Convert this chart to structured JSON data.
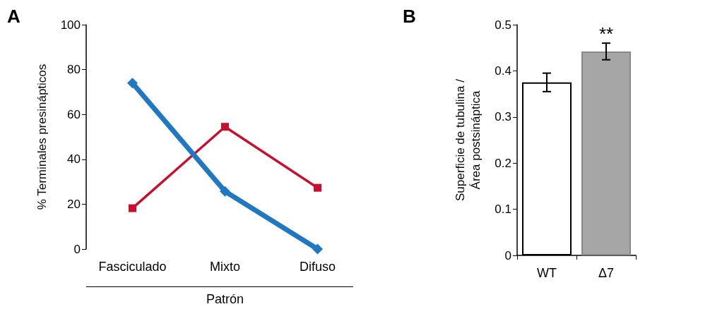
{
  "chart_data": [
    {
      "type": "line",
      "title": "A",
      "xlabel": "Patrón",
      "ylabel": "% Terminales presinápticos",
      "categories": [
        "Fasciculado",
        "Mixto",
        "Difuso"
      ],
      "ylim": [
        0,
        100
      ],
      "yticks": [
        0,
        20,
        40,
        60,
        80,
        100
      ],
      "line_style": "solid",
      "series": [
        {
          "color": "#1f78c1",
          "marker": "diamond",
          "values": [
            74,
            25.7,
            0
          ]
        },
        {
          "color": "#c8102e",
          "marker": "square",
          "values": [
            18.2,
            54.5,
            27.3
          ]
        }
      ]
    },
    {
      "type": "bar",
      "title": "B",
      "ylabel": "Superficie de tubulina /\nÁrea postsináptica",
      "categories": [
        "WT",
        "Δ7"
      ],
      "ylim": [
        0,
        0.5
      ],
      "yticks": [
        0,
        0.1,
        0.2,
        0.3,
        0.4,
        0.5
      ],
      "colors": [
        "#ffffff",
        "#a6a6a6"
      ],
      "values": [
        0.375,
        0.442
      ],
      "errors": [
        0.02,
        0.018
      ],
      "annotations": [
        "**"
      ]
    }
  ]
}
